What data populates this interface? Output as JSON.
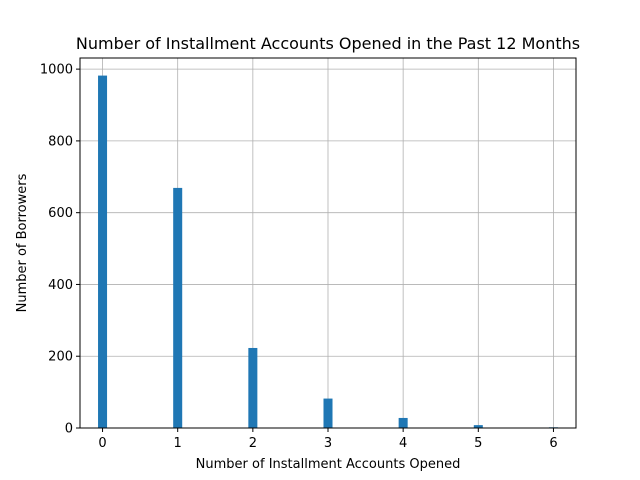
{
  "chart_data": {
    "type": "bar",
    "title": "Number of Installment Accounts Opened in the Past 12 Months",
    "xlabel": "Number of Installment Accounts Opened",
    "ylabel": "Number of Borrowers",
    "x": [
      0,
      1,
      2,
      3,
      4,
      5,
      6
    ],
    "values": [
      982,
      669,
      223,
      82,
      28,
      8,
      2
    ],
    "xticks": [
      "0",
      "1",
      "2",
      "3",
      "4",
      "5",
      "6"
    ],
    "yticks": [
      "0",
      "200",
      "400",
      "600",
      "800",
      "1000"
    ],
    "xlim": [
      -0.3,
      6.3
    ],
    "ylim": [
      0,
      1031
    ],
    "bar_color": "#1f77b4",
    "grid": true
  }
}
